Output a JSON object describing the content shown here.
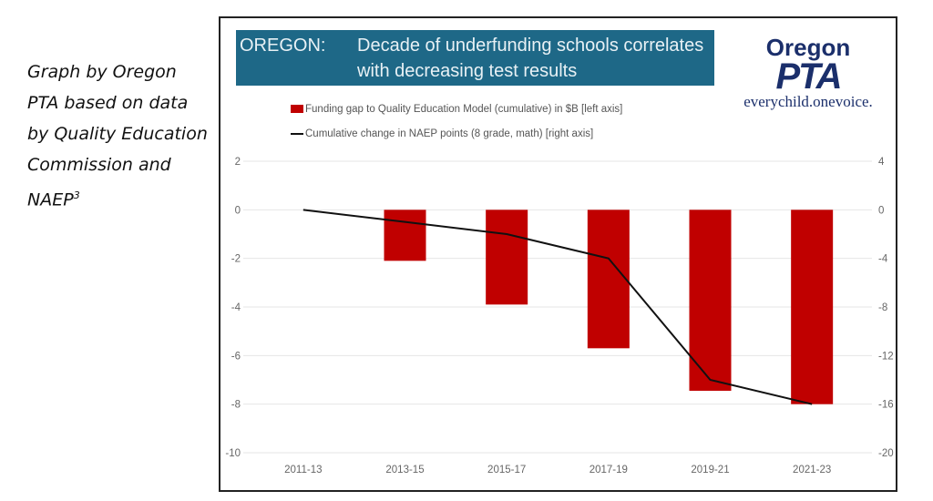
{
  "caption": {
    "text": "Graph by Oregon PTA based on data by Quality Education Commission and NAEP",
    "superscript": "3"
  },
  "title": {
    "prefix": "OREGON:",
    "text": "Decade of underfunding schools correlates with decreasing test results"
  },
  "logo": {
    "line1": "Oregon",
    "line2": "PTA",
    "tagline": "everychild.onevoice."
  },
  "colors": {
    "bar": "#c00000",
    "line": "#111111",
    "title_bg": "#1e6887",
    "logo": "#1b2f6b"
  },
  "chart_data": {
    "type": "bar+line",
    "categories": [
      "2011-13",
      "2013-15",
      "2015-17",
      "2017-19",
      "2019-21",
      "2021-23"
    ],
    "series": [
      {
        "name": "Funding gap to Quality Education Model (cumulative) in $B [left axis]",
        "type": "bar",
        "axis": "left",
        "values": [
          0,
          -2.1,
          -3.9,
          -5.7,
          -7.45,
          -8.0
        ]
      },
      {
        "name": "Cumulative change in NAEP points (8 grade, math) [right axis]",
        "type": "line",
        "axis": "right",
        "values": [
          0,
          -1,
          -2,
          -4,
          -14,
          -16
        ]
      }
    ],
    "left_axis": {
      "ylim": [
        -10,
        2
      ],
      "ticks": [
        2,
        0,
        -2,
        -4,
        -6,
        -8,
        -10
      ]
    },
    "right_axis": {
      "ylim": [
        -20,
        4
      ],
      "ticks": [
        4,
        0,
        -4,
        -8,
        -12,
        -16,
        -20
      ]
    },
    "grid": true,
    "legend_position": "top"
  }
}
